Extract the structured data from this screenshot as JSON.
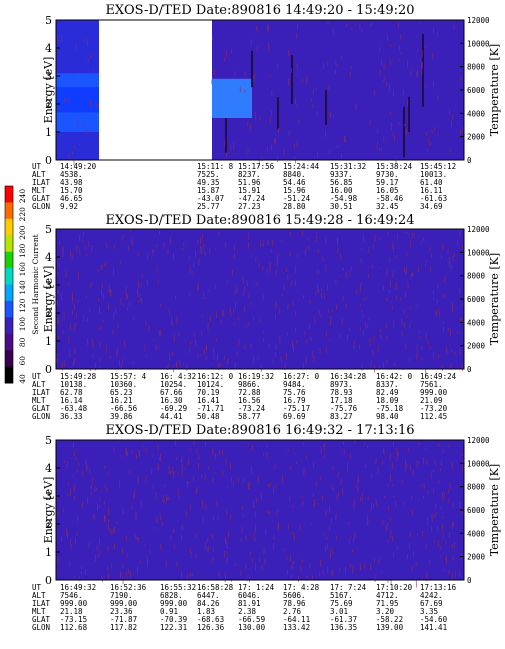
{
  "colors": {
    "background": "#3a1fb8",
    "streak": "#8a2f6a",
    "blank": "#ffffff",
    "low_energy_band": "#1a55ff",
    "mid_band": "#2f7cff"
  },
  "colorbar": {
    "label": "Second Harmonic Current",
    "ticks": [
      "40",
      "60",
      "80",
      "100",
      "120",
      "140",
      "160",
      "180",
      "200",
      "220",
      "240"
    ],
    "colors": [
      "#000000",
      "#3a0050",
      "#4a0d8a",
      "#3a1fb8",
      "#1a55ff",
      "#00a6ff",
      "#00d9c0",
      "#19d200",
      "#b6e600",
      "#ffcc00",
      "#ff6a00",
      "#ff0000"
    ]
  },
  "chart_data": [
    {
      "type": "heatmap",
      "title": "EXOS-D/TED  Date:890816  14:49:20 - 15:49:20",
      "ylabel": "Energy [eV]",
      "y2label": "Temperature [K]",
      "ylim": [
        0,
        5
      ],
      "y2lim": [
        0,
        12000
      ],
      "yticks": [
        "0",
        "1",
        "2",
        "3",
        "4",
        "5"
      ],
      "y2ticks": [
        "0",
        "2000",
        "4000",
        "6000",
        "8000",
        "10000",
        "12000"
      ],
      "table": {
        "row_labels": [
          "UT",
          "ALT",
          "ILAT",
          "MLT",
          "GLAT",
          "GLON"
        ],
        "columns": [
          [
            "14:49:20",
            "4538.",
            "43.98",
            "15.70",
            "46.65",
            "9.92"
          ],
          [
            "",
            "",
            "",
            "",
            "",
            ""
          ],
          [
            "",
            "",
            "",
            "",
            "",
            ""
          ],
          [
            "15:11: 8",
            "7525.",
            "49.35",
            "15.87",
            "-43.07",
            "25.77"
          ],
          [
            "15:17:56",
            "8237.",
            "51.96",
            "15.91",
            "-47.24",
            "27.23"
          ],
          [
            "15:24:44",
            "8840.",
            "54.46",
            "15.96",
            "-51.24",
            "28.80"
          ],
          [
            "15:31:32",
            "9337.",
            "56.85",
            "16.00",
            "-54.98",
            "30.51"
          ],
          [
            "15:38:24",
            "9730.",
            "59.17",
            "16.05",
            "-58.46",
            "32.45"
          ],
          [
            "15:45:12",
            "10013.",
            "61.40",
            "16.11",
            "-61.63",
            "34.69"
          ]
        ]
      }
    },
    {
      "type": "heatmap",
      "title": "EXOS-D/TED  Date:890816  15:49:28 - 16:49:24",
      "ylabel": "Energy [eV]",
      "y2label": "Temperature [K]",
      "ylim": [
        0,
        5
      ],
      "y2lim": [
        0,
        12000
      ],
      "yticks": [
        "0",
        "1",
        "2",
        "3",
        "4",
        "5"
      ],
      "y2ticks": [
        "0",
        "2000",
        "4000",
        "6000",
        "8000",
        "10000",
        "12000"
      ],
      "table": {
        "row_labels": [
          "UT",
          "ALT",
          "ILAT",
          "MLT",
          "GLAT",
          "GLON"
        ],
        "columns": [
          [
            "15:49:28",
            "10138.",
            "62.78",
            "16.14",
            "-63.48",
            "36.33"
          ],
          [
            "15:57: 4",
            "10360.",
            "65.23",
            "16.21",
            "-66.56",
            "39.86"
          ],
          [
            "16: 4:32",
            "10254.",
            "67.66",
            "16.30",
            "-69.29",
            "44.41"
          ],
          [
            "16:12: 0",
            "10124.",
            "70.19",
            "16.41",
            "-71.71",
            "50.48"
          ],
          [
            "16:19:32",
            "9866.",
            "72.88",
            "16.56",
            "-73.24",
            "58.77"
          ],
          [
            "16:27: 0",
            "9484.",
            "75.76",
            "16.79",
            "-75.17",
            "69.69"
          ],
          [
            "16:34:28",
            "8973.",
            "78.93",
            "17.18",
            "-75.76",
            "83.27"
          ],
          [
            "16:42: 0",
            "8337.",
            "82.49",
            "18.09",
            "-75.18",
            "98.40"
          ],
          [
            "16:49:24",
            "7561.",
            "999.00",
            "21.09",
            "-73.20",
            "112.45"
          ]
        ]
      }
    },
    {
      "type": "heatmap",
      "title": "EXOS-D/TED  Date:890816  16:49:32 - 17:13:16",
      "ylabel": "Energy [eV]",
      "y2label": "Temperature [K]",
      "ylim": [
        0,
        5
      ],
      "y2lim": [
        0,
        12000
      ],
      "yticks": [
        "0",
        "1",
        "2",
        "3",
        "4",
        "5"
      ],
      "y2ticks": [
        "0",
        "2000",
        "4000",
        "6000",
        "8000",
        "10000",
        "12000"
      ],
      "table": {
        "row_labels": [
          "UT",
          "ALT",
          "ILAT",
          "MLT",
          "GLAT",
          "GLON"
        ],
        "columns": [
          [
            "16:49:32",
            "7546.",
            "999.00",
            "21.18",
            "-73.15",
            "112.68"
          ],
          [
            "16:52:36",
            "7190.",
            "999.00",
            "23.36",
            "-71.87",
            "117.82"
          ],
          [
            "16:55:32",
            "6828.",
            "999.00",
            "0.91",
            "-70.39",
            "122.31"
          ],
          [
            "16:58:28",
            "6447.",
            "84.26",
            "1.83",
            "-68.63",
            "126.36"
          ],
          [
            "17: 1:24",
            "6046.",
            "81.91",
            "2.38",
            "-66.59",
            "130.00"
          ],
          [
            "17: 4:28",
            "5606.",
            "78.96",
            "2.76",
            "-64.11",
            "133.42"
          ],
          [
            "17: 7:24",
            "5167.",
            "75.69",
            "3.01",
            "-61.37",
            "136.35"
          ],
          [
            "17:10:20",
            "4712.",
            "71.95",
            "3.20",
            "-58.22",
            "139.00"
          ],
          [
            "17:13:16",
            "4242.",
            "67.69",
            "3.35",
            "-54.60",
            "141.41"
          ]
        ]
      }
    }
  ]
}
